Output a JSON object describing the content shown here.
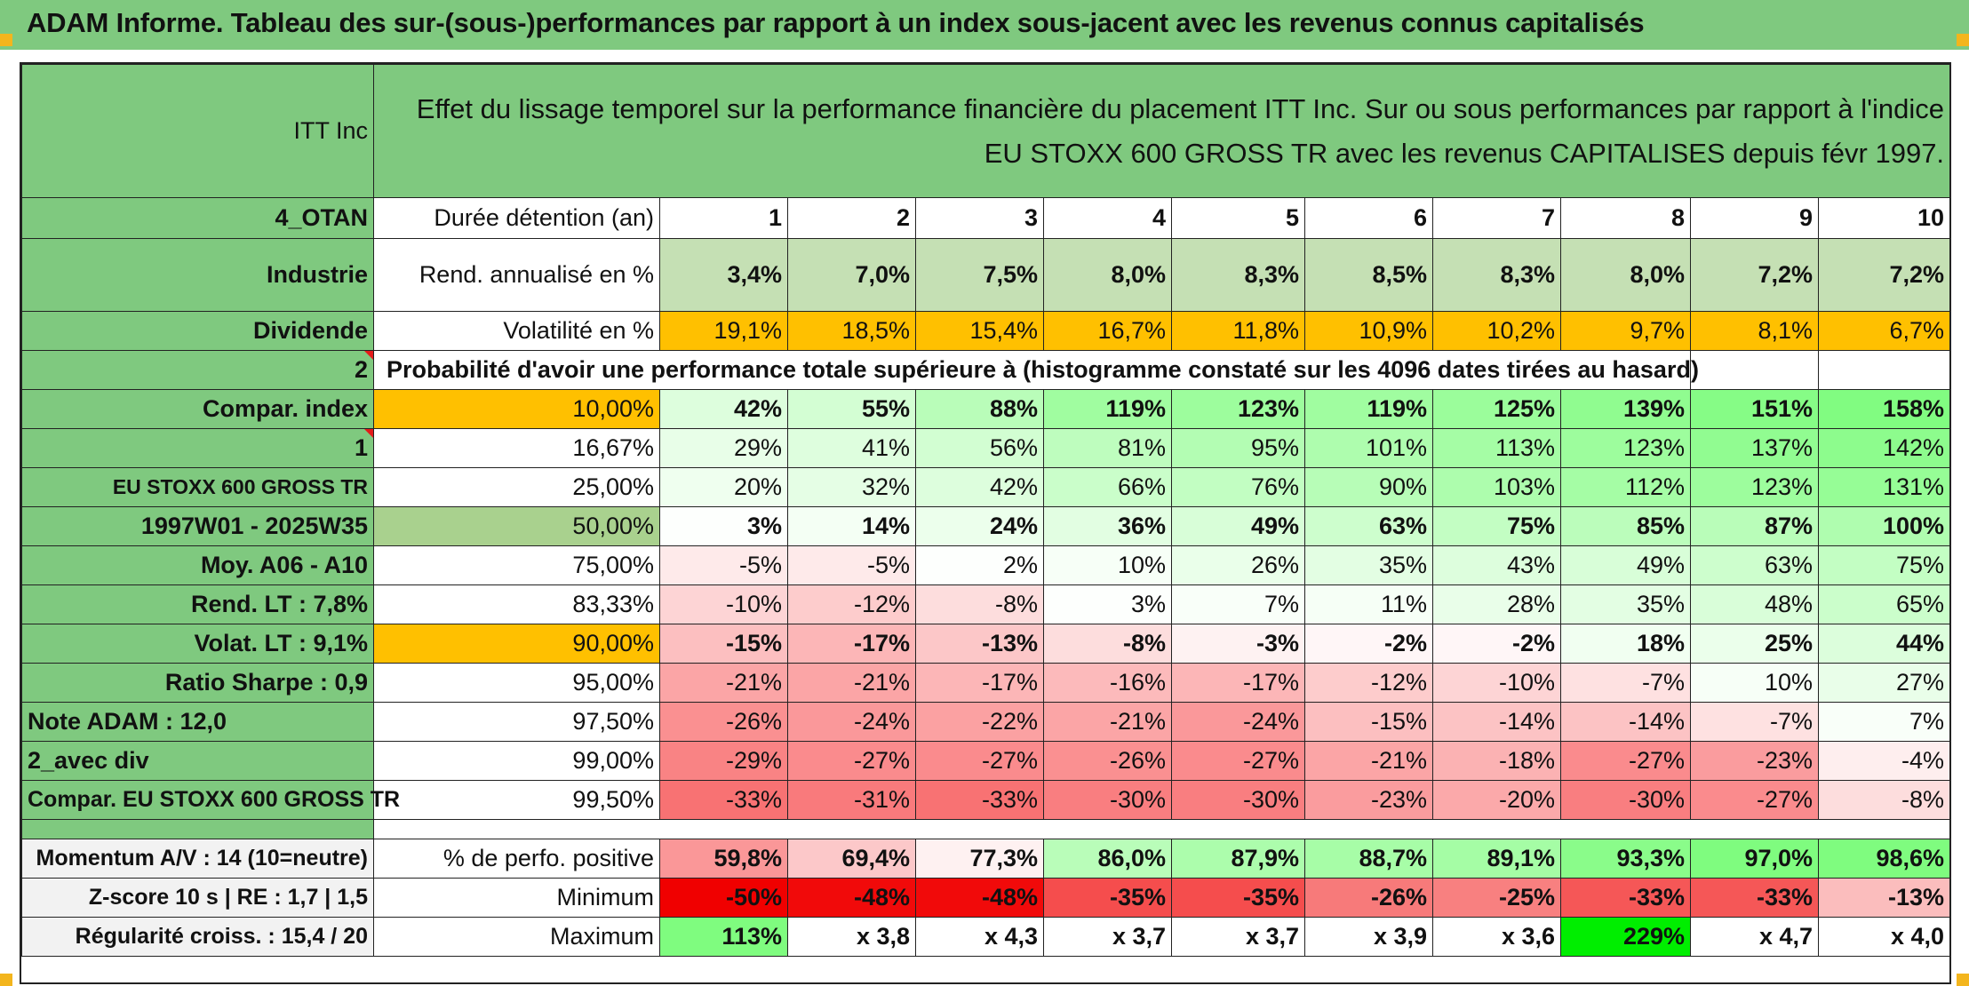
{
  "title": "ADAM Informe. Tableau des sur-(sous-)performances par rapport à un index sous-jacent avec les revenus connus capitalisés",
  "header": {
    "company": "ITT Inc",
    "desc_line1": "Effet du lissage temporel sur la performance financière du placement ITT Inc. Sur ou sous performances par rapport à l'indice",
    "desc_line2": "EU STOXX 600 GROSS TR avec les revenus CAPITALISES depuis févr 1997."
  },
  "left": {
    "code": "4_OTAN",
    "sector": "Industrie",
    "dividend": "Dividende",
    "num2": "2",
    "compar_index": "Compar. index",
    "num1": "1",
    "index_name": "EU STOXX 600 GROSS TR",
    "period": "1997W01 - 2025W35",
    "moy": "Moy. A06 - A10",
    "rend_lt": "Rend. LT :   7,8%",
    "volat_lt": "Volat. LT :   9,1%",
    "sharpe": "Ratio Sharpe :    0,9",
    "note": "Note ADAM : 12,0",
    "avec_div": "2_avec div",
    "compar_full": "Compar. EU STOXX 600 GROSS TR",
    "momentum": "Momentum A/V : 14 (10=neutre)",
    "zscore": "Z-score 10 s | RE : 1,7 | 1,5",
    "regularite": "Régularité croiss. : 15,4 / 20"
  },
  "row_labels": {
    "duree": "Durée détention (an)",
    "rend": "Rend. annualisé en %",
    "volat": "Volatilité en %",
    "proba": "Probabilité d'avoir une performance totale supérieure à (histogramme constaté sur les 4096 dates tirées au hasard)",
    "positive": "% de perfo. positive",
    "minimum": "Minimum",
    "maximum": "Maximum"
  },
  "years": [
    "1",
    "2",
    "3",
    "4",
    "5",
    "6",
    "7",
    "8",
    "9",
    "10"
  ],
  "rend": [
    "3,4%",
    "7,0%",
    "7,5%",
    "8,0%",
    "8,3%",
    "8,5%",
    "8,3%",
    "8,0%",
    "7,2%",
    "7,2%"
  ],
  "volat": [
    "19,1%",
    "18,5%",
    "15,4%",
    "16,7%",
    "11,8%",
    "10,9%",
    "10,2%",
    "9,7%",
    "8,1%",
    "6,7%"
  ],
  "percentiles": [
    {
      "p": "10,00%",
      "values": [
        "42%",
        "55%",
        "88%",
        "119%",
        "123%",
        "119%",
        "125%",
        "139%",
        "151%",
        "158%"
      ]
    },
    {
      "p": "16,67%",
      "values": [
        "29%",
        "41%",
        "56%",
        "81%",
        "95%",
        "101%",
        "113%",
        "123%",
        "137%",
        "142%"
      ]
    },
    {
      "p": "25,00%",
      "values": [
        "20%",
        "32%",
        "42%",
        "66%",
        "76%",
        "90%",
        "103%",
        "112%",
        "123%",
        "131%"
      ]
    },
    {
      "p": "50,00%",
      "values": [
        "3%",
        "14%",
        "24%",
        "36%",
        "49%",
        "63%",
        "75%",
        "85%",
        "87%",
        "100%"
      ]
    },
    {
      "p": "75,00%",
      "values": [
        "-5%",
        "-5%",
        "2%",
        "10%",
        "26%",
        "35%",
        "43%",
        "49%",
        "63%",
        "75%"
      ]
    },
    {
      "p": "83,33%",
      "values": [
        "-10%",
        "-12%",
        "-8%",
        "3%",
        "7%",
        "11%",
        "28%",
        "35%",
        "48%",
        "65%"
      ]
    },
    {
      "p": "90,00%",
      "values": [
        "-15%",
        "-17%",
        "-13%",
        "-8%",
        "-3%",
        "-2%",
        "-2%",
        "18%",
        "25%",
        "44%"
      ]
    },
    {
      "p": "95,00%",
      "values": [
        "-21%",
        "-21%",
        "-17%",
        "-16%",
        "-17%",
        "-12%",
        "-10%",
        "-7%",
        "10%",
        "27%"
      ]
    },
    {
      "p": "97,50%",
      "values": [
        "-26%",
        "-24%",
        "-22%",
        "-21%",
        "-24%",
        "-15%",
        "-14%",
        "-14%",
        "-7%",
        "7%"
      ]
    },
    {
      "p": "99,00%",
      "values": [
        "-29%",
        "-27%",
        "-27%",
        "-26%",
        "-27%",
        "-21%",
        "-18%",
        "-27%",
        "-23%",
        "-4%"
      ]
    },
    {
      "p": "99,50%",
      "values": [
        "-33%",
        "-31%",
        "-33%",
        "-30%",
        "-30%",
        "-23%",
        "-20%",
        "-30%",
        "-27%",
        "-8%"
      ]
    }
  ],
  "positive": [
    "59,8%",
    "69,4%",
    "77,3%",
    "86,0%",
    "87,9%",
    "88,7%",
    "89,1%",
    "93,3%",
    "97,0%",
    "98,6%"
  ],
  "minimum": [
    "-50%",
    "-48%",
    "-48%",
    "-35%",
    "-35%",
    "-26%",
    "-25%",
    "-33%",
    "-33%",
    "-13%"
  ],
  "maximum": [
    "113%",
    "x 3,8",
    "x 4,3",
    "x 3,7",
    "x 3,7",
    "x 3,9",
    "x 3,6",
    "229%",
    "x 4,7",
    "x 4,0"
  ],
  "colors": {
    "header_green": "#7fc97f",
    "bright_green": "#00ee00",
    "yellow": "#ffff00",
    "orange": "#ffc000",
    "red_text": "#e41a1a",
    "positive_scale": "#7ffc7f",
    "negative_scale": "#f8696b"
  }
}
